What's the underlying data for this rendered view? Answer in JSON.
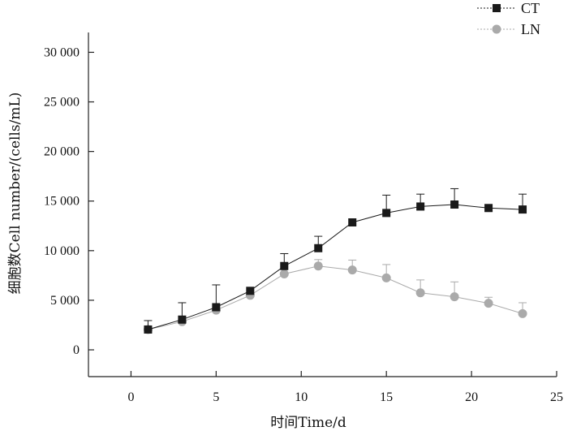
{
  "chart_data": {
    "type": "line",
    "title": "",
    "xlabel": "时间Time/d",
    "ylabel": "细胞数Cell number/(cells/mL)",
    "xlim": [
      -2.5,
      25
    ],
    "ylim": [
      -2700,
      32000
    ],
    "x_ticks": [
      0,
      5,
      10,
      15,
      20,
      25
    ],
    "x_tick_labels": [
      "0",
      "5",
      "10",
      "15",
      "20",
      "25"
    ],
    "y_ticks": [
      0,
      5000,
      10000,
      15000,
      20000,
      25000,
      30000
    ],
    "y_tick_labels": [
      "0",
      "5 000",
      "10 000",
      "15 000",
      "20 000",
      "25 000",
      "30 000"
    ],
    "legend_position": "top-right",
    "series": [
      {
        "name": "CT",
        "color": "#1a1a1a",
        "marker": "square",
        "x": [
          1,
          3,
          5,
          7,
          9,
          11,
          13,
          15,
          17,
          19,
          21,
          23
        ],
        "y": [
          2050,
          3050,
          4300,
          5950,
          8450,
          10250,
          12850,
          13800,
          14450,
          14650,
          14300,
          14150
        ],
        "err": [
          900,
          1700,
          2250,
          0,
          1250,
          1200,
          0,
          1800,
          1250,
          1600,
          0,
          1550
        ]
      },
      {
        "name": "LN",
        "color": "#aaaaaa",
        "marker": "circle",
        "x": [
          1,
          3,
          5,
          7,
          9,
          11,
          13,
          15,
          17,
          19,
          21,
          23
        ],
        "y": [
          2050,
          2850,
          4000,
          5500,
          7650,
          8450,
          8050,
          7250,
          5750,
          5350,
          4700,
          3650
        ],
        "err": [
          0,
          0,
          0,
          0,
          0,
          650,
          1000,
          1350,
          1300,
          1500,
          600,
          1100
        ]
      }
    ]
  }
}
